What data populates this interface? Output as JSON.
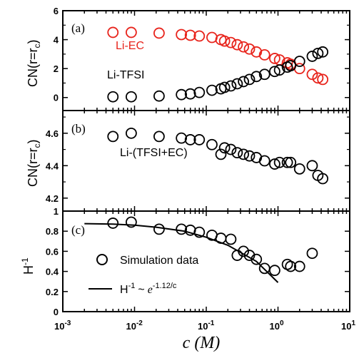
{
  "xaxis": {
    "label": "c (M)",
    "scale": "log",
    "lim": [
      0.001,
      10
    ],
    "ticks": [
      {
        "value": 0.001,
        "base": "10",
        "exp": "-3"
      },
      {
        "value": 0.01,
        "base": "10",
        "exp": "-2"
      },
      {
        "value": 0.1,
        "base": "10",
        "exp": "-1"
      },
      {
        "value": 1,
        "base": "10",
        "exp": "0"
      },
      {
        "value": 10,
        "base": "10",
        "exp": "1"
      }
    ]
  },
  "chart_data": [
    {
      "type": "scatter",
      "panel_label": "(a)",
      "ylabel": "CN(r=rc)",
      "ylim": [
        -0.9,
        6
      ],
      "yticks": [
        0,
        2,
        4,
        6
      ],
      "series": [
        {
          "name": "Li-EC",
          "color": "#e8241c",
          "label_color": "#e8241c",
          "x": [
            0.005,
            0.009,
            0.022,
            0.045,
            0.06,
            0.08,
            0.12,
            0.16,
            0.18,
            0.22,
            0.27,
            0.33,
            0.4,
            0.5,
            0.65,
            0.9,
            1.05,
            1.35,
            1.5,
            2.0,
            3.0,
            3.6,
            4.2
          ],
          "y": [
            4.5,
            4.5,
            4.45,
            4.35,
            4.3,
            4.25,
            4.15,
            4.0,
            3.9,
            3.8,
            3.65,
            3.5,
            3.35,
            3.15,
            2.95,
            2.7,
            2.6,
            2.4,
            2.3,
            2.0,
            1.6,
            1.35,
            1.25
          ]
        },
        {
          "name": "Li-TFSI",
          "color": "#000000",
          "label_color": "#000000",
          "x": [
            0.005,
            0.009,
            0.022,
            0.045,
            0.06,
            0.08,
            0.12,
            0.16,
            0.18,
            0.22,
            0.27,
            0.33,
            0.4,
            0.5,
            0.65,
            0.9,
            1.05,
            1.35,
            1.5,
            2.0,
            3.0,
            3.6,
            4.2
          ],
          "y": [
            0.05,
            0.05,
            0.1,
            0.2,
            0.25,
            0.35,
            0.5,
            0.6,
            0.7,
            0.8,
            0.95,
            1.1,
            1.25,
            1.45,
            1.6,
            1.8,
            1.9,
            2.1,
            2.2,
            2.5,
            2.85,
            3.05,
            3.15
          ]
        }
      ]
    },
    {
      "type": "scatter",
      "panel_label": "(b)",
      "ylabel": "CN(r=rc)",
      "ylim": [
        4.12,
        4.74
      ],
      "yticks": [
        4.2,
        4.4,
        4.6
      ],
      "series": [
        {
          "name": "Li-(TFSI+EC)",
          "color": "#000000",
          "label_color": "#000000",
          "x": [
            0.005,
            0.009,
            0.022,
            0.045,
            0.06,
            0.08,
            0.12,
            0.16,
            0.18,
            0.22,
            0.27,
            0.33,
            0.4,
            0.5,
            0.65,
            0.9,
            1.05,
            1.35,
            1.5,
            2.0,
            3.0,
            3.6,
            4.2
          ],
          "y": [
            4.58,
            4.6,
            4.58,
            4.57,
            4.56,
            4.56,
            4.53,
            4.47,
            4.51,
            4.5,
            4.48,
            4.47,
            4.46,
            4.45,
            4.43,
            4.41,
            4.42,
            4.42,
            4.42,
            4.38,
            4.4,
            4.34,
            4.32
          ]
        }
      ]
    },
    {
      "type": "line",
      "panel_label": "(c)",
      "ylabel": "H-1",
      "ylim": [
        0,
        1
      ],
      "yticks": [
        0,
        0.2,
        0.4,
        0.6,
        0.8,
        1
      ],
      "series": [
        {
          "name": "Simulation data",
          "kind": "scatter",
          "color": "#000000",
          "x": [
            0.005,
            0.009,
            0.022,
            0.045,
            0.06,
            0.08,
            0.12,
            0.16,
            0.22,
            0.27,
            0.33,
            0.4,
            0.5,
            0.65,
            0.9,
            1.35,
            1.5,
            2.0,
            3.0
          ],
          "y": [
            0.88,
            0.89,
            0.82,
            0.82,
            0.81,
            0.79,
            0.76,
            0.73,
            0.72,
            0.56,
            0.6,
            0.56,
            0.52,
            0.43,
            0.41,
            0.47,
            0.45,
            0.45,
            0.58
          ]
        },
        {
          "name": "H-1 ~ e-1.12/c",
          "kind": "line",
          "color": "#000000",
          "x": [
            0.002,
            0.005,
            0.01,
            0.02,
            0.05,
            0.1,
            0.2,
            0.5,
            1.0
          ],
          "y": [
            0.875,
            0.87,
            0.86,
            0.84,
            0.8,
            0.74,
            0.66,
            0.5,
            0.29
          ]
        }
      ],
      "legend": {
        "markerLabel": "Simulation data",
        "fitLabelMain": "H",
        "fitLabelSup": "-1",
        "fitLabelTilde": "~",
        "fitLabelExpBase": "e",
        "fitLabelExpSup": "-1.12/c",
        "placement": "lower-left"
      }
    }
  ],
  "tick_labels": {
    "a": [
      "0",
      "2",
      "4",
      "6"
    ],
    "b": [
      "4.2",
      "4.4",
      "4.6"
    ],
    "c": [
      "0",
      "0.2",
      "0.4",
      "0.6",
      "0.8",
      "1"
    ]
  },
  "axis_titles": {
    "a_main": "CN(r=r",
    "a_sub": "c",
    "a_close": ")",
    "b_main": "CN(r=r",
    "b_sub": "c",
    "b_close": ")",
    "c_main": "H",
    "c_sup": "-1",
    "x_main": "c (M)"
  },
  "series_labels": {
    "li_ec": "Li-EC",
    "li_tfsi": "Li-TFSI",
    "li_tfsi_ec": "Li-(TFSI+EC)"
  }
}
